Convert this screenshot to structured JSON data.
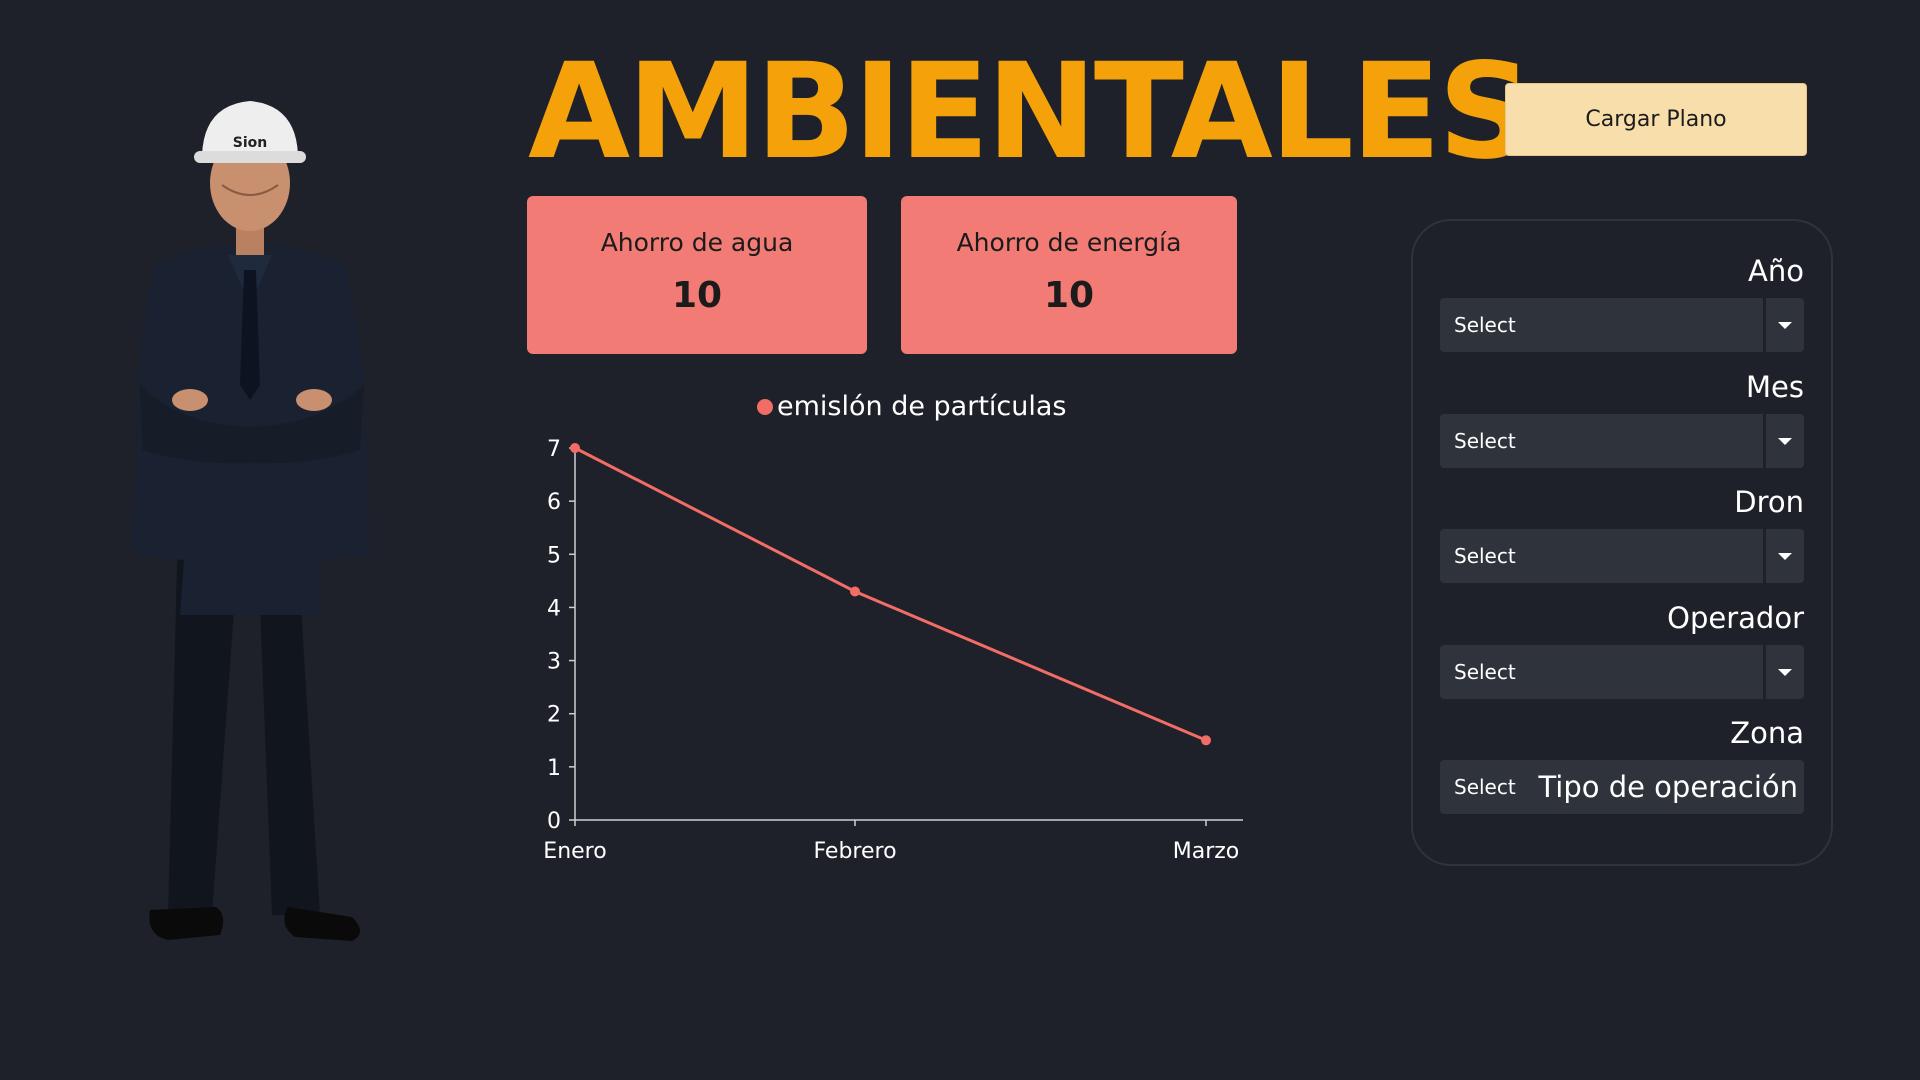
{
  "header": {
    "title": "AMBIENTALES",
    "load_button": "Cargar Plano"
  },
  "person": {
    "helmet_text": "Sion"
  },
  "kpis": [
    {
      "label": "Ahorro de agua",
      "value": "10"
    },
    {
      "label": "Ahorro de energía",
      "value": "10"
    }
  ],
  "chart_data": {
    "type": "line",
    "categories": [
      "Enero",
      "Febrero",
      "Marzo"
    ],
    "series": [
      {
        "name": "emislón de partículas",
        "values": [
          7.0,
          4.3,
          1.5
        ],
        "color": "#f16d66"
      }
    ],
    "ylim": [
      0,
      7
    ],
    "yticks": [
      0,
      1,
      2,
      3,
      4,
      5,
      6,
      7
    ],
    "legend_position": "top"
  },
  "filters": {
    "year": {
      "label": "Año",
      "value": "Select"
    },
    "month": {
      "label": "Mes",
      "value": "Select"
    },
    "drone": {
      "label": "Dron",
      "value": "Select"
    },
    "operator": {
      "label": "Operador",
      "value": "Select"
    },
    "zone": {
      "label": "Zona",
      "value": "Select",
      "overlay_label": "Tipo de operación"
    }
  },
  "colors": {
    "background": "#1e2129",
    "title": "#f5a20a",
    "button": "#f7deaa",
    "kpi_card": "#f27b76",
    "series": "#f16d66",
    "select_bg": "#2f333c"
  }
}
